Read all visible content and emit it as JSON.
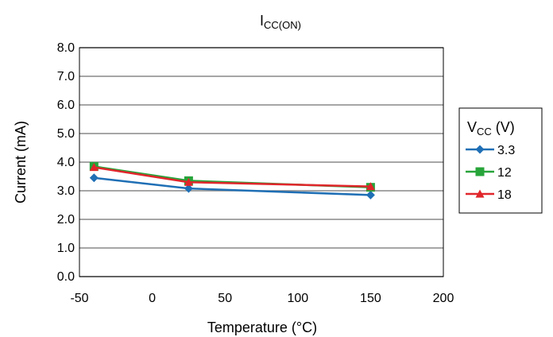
{
  "chart_data": {
    "type": "line",
    "title": {
      "main": "I",
      "sub": "CC(ON)"
    },
    "xlabel": "Temperature (°C)",
    "ylabel": "Current (mA)",
    "xlim": [
      -50,
      200
    ],
    "ylim": [
      0,
      8
    ],
    "x_ticks": [
      -50,
      0,
      50,
      100,
      150,
      200
    ],
    "x_tick_labels": [
      "-50",
      "0",
      "50",
      "100",
      "150",
      "200"
    ],
    "y_ticks": [
      0,
      1,
      2,
      3,
      4,
      5,
      6,
      7,
      8
    ],
    "y_tick_labels": [
      "0.0",
      "1.0",
      "2.0",
      "3.0",
      "4.0",
      "5.0",
      "6.0",
      "7.0",
      "8.0"
    ],
    "grid": "horizontal",
    "legend": {
      "title_main": "V",
      "title_sub": "CC",
      "title_unit": " (V)",
      "placement": "right"
    },
    "series": [
      {
        "name": "3.3",
        "color": "#1f6fb5",
        "marker": "diamond",
        "x": [
          -40,
          25,
          150
        ],
        "y": [
          3.45,
          3.08,
          2.85
        ]
      },
      {
        "name": "12",
        "color": "#27a43a",
        "marker": "square",
        "x": [
          -40,
          25,
          150
        ],
        "y": [
          3.85,
          3.35,
          3.12
        ]
      },
      {
        "name": "18",
        "color": "#e0262b",
        "marker": "triangle",
        "x": [
          -40,
          25,
          150
        ],
        "y": [
          3.82,
          3.3,
          3.15
        ]
      }
    ]
  }
}
